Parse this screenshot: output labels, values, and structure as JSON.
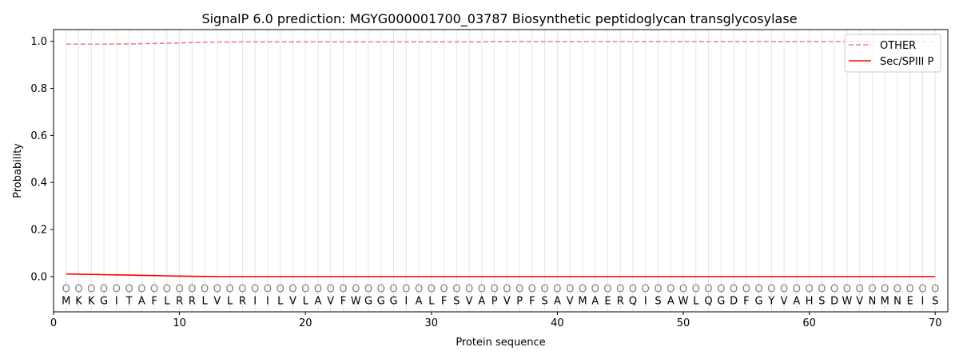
{
  "chart_data": {
    "type": "line",
    "title": "SignalP 6.0 prediction: MGYG000001700_03787 Biosynthetic peptidoglycan transglycosylase",
    "xlabel": "Protein sequence",
    "ylabel": "Probability",
    "xlim": [
      0,
      71
    ],
    "ylim": [
      -0.15,
      1.05
    ],
    "x_ticks": [
      0,
      10,
      20,
      30,
      40,
      50,
      60,
      70
    ],
    "y_ticks": [
      0.0,
      0.2,
      0.4,
      0.6,
      0.8,
      1.0
    ],
    "x_tick_labels": [
      "0",
      "10",
      "20",
      "30",
      "40",
      "50",
      "60",
      "70"
    ],
    "y_tick_labels": [
      "0.0",
      "0.2",
      "0.4",
      "0.6",
      "0.8",
      "1.0"
    ],
    "grid": "vertical lines at each residue",
    "legend_position": "top-right",
    "sequence": [
      "M",
      "K",
      "K",
      "G",
      "I",
      "T",
      "A",
      "F",
      "L",
      "R",
      "R",
      "L",
      "V",
      "L",
      "R",
      "I",
      "I",
      "L",
      "V",
      "L",
      "A",
      "V",
      "F",
      "W",
      "G",
      "G",
      "G",
      "I",
      "A",
      "L",
      "F",
      "S",
      "V",
      "A",
      "P",
      "V",
      "P",
      "F",
      "S",
      "A",
      "V",
      "M",
      "A",
      "E",
      "R",
      "Q",
      "I",
      "S",
      "A",
      "W",
      "L",
      "Q",
      "G",
      "D",
      "F",
      "G",
      "Y",
      "V",
      "A",
      "H",
      "S",
      "D",
      "W",
      "V",
      "N",
      "M",
      "N",
      "E",
      "I",
      "S"
    ],
    "state_labels": [
      "O",
      "O",
      "O",
      "O",
      "O",
      "O",
      "O",
      "O",
      "O",
      "O",
      "O",
      "O",
      "O",
      "O",
      "O",
      "O",
      "O",
      "O",
      "O",
      "O",
      "O",
      "O",
      "O",
      "O",
      "O",
      "O",
      "O",
      "O",
      "O",
      "O",
      "O",
      "O",
      "O",
      "O",
      "O",
      "O",
      "O",
      "O",
      "O",
      "O",
      "O",
      "O",
      "O",
      "O",
      "O",
      "O",
      "O",
      "O",
      "O",
      "O",
      "O",
      "O",
      "O",
      "O",
      "O",
      "O",
      "O",
      "O",
      "O",
      "O",
      "O",
      "O",
      "O",
      "O",
      "O",
      "O",
      "O",
      "O",
      "O",
      "O"
    ],
    "series": [
      {
        "name": "OTHER",
        "color": "#f08080",
        "style": "dashed",
        "values": [
          0.988,
          0.988,
          0.988,
          0.988,
          0.989,
          0.989,
          0.99,
          0.991,
          0.992,
          0.993,
          0.995,
          0.996,
          0.997,
          0.997,
          0.998,
          0.998,
          0.998,
          0.998,
          0.998,
          0.998,
          0.998,
          0.998,
          0.998,
          0.998,
          0.998,
          0.998,
          0.998,
          0.998,
          0.998,
          0.998,
          0.998,
          0.998,
          0.998,
          0.998,
          0.999,
          0.999,
          0.999,
          0.999,
          0.999,
          0.999,
          0.999,
          0.999,
          0.999,
          0.999,
          0.999,
          0.999,
          0.999,
          0.999,
          0.999,
          0.999,
          0.999,
          0.999,
          0.999,
          0.999,
          0.999,
          0.999,
          0.999,
          0.999,
          0.999,
          0.999,
          0.999,
          0.999,
          0.999,
          0.999,
          0.999,
          0.999,
          0.999,
          0.999,
          0.999,
          0.999
        ]
      },
      {
        "name": "Sec/SPIII P",
        "color": "#ff0000",
        "style": "solid",
        "values": [
          0.011,
          0.01,
          0.009,
          0.008,
          0.007,
          0.006,
          0.005,
          0.004,
          0.003,
          0.002,
          0.001,
          0.0005,
          0.0,
          0.0,
          0.0,
          0.0,
          0.0,
          0.0,
          0.0,
          0.0,
          0.0,
          0.0,
          0.0,
          0.0,
          0.0,
          0.0,
          0.0,
          0.0,
          0.0,
          0.0,
          0.0,
          0.0,
          0.0,
          0.0,
          0.0,
          0.0,
          0.0,
          0.0,
          0.0,
          0.0,
          0.0,
          0.0,
          0.0,
          0.0,
          0.0,
          0.0,
          0.0,
          0.0,
          0.0,
          0.0,
          0.0,
          0.0,
          0.0,
          0.0,
          0.0,
          0.0,
          0.0,
          0.0,
          0.0,
          0.0,
          0.0,
          0.0,
          0.0,
          0.0,
          0.0,
          0.0,
          0.0,
          0.0,
          0.0,
          0.0
        ]
      }
    ]
  }
}
